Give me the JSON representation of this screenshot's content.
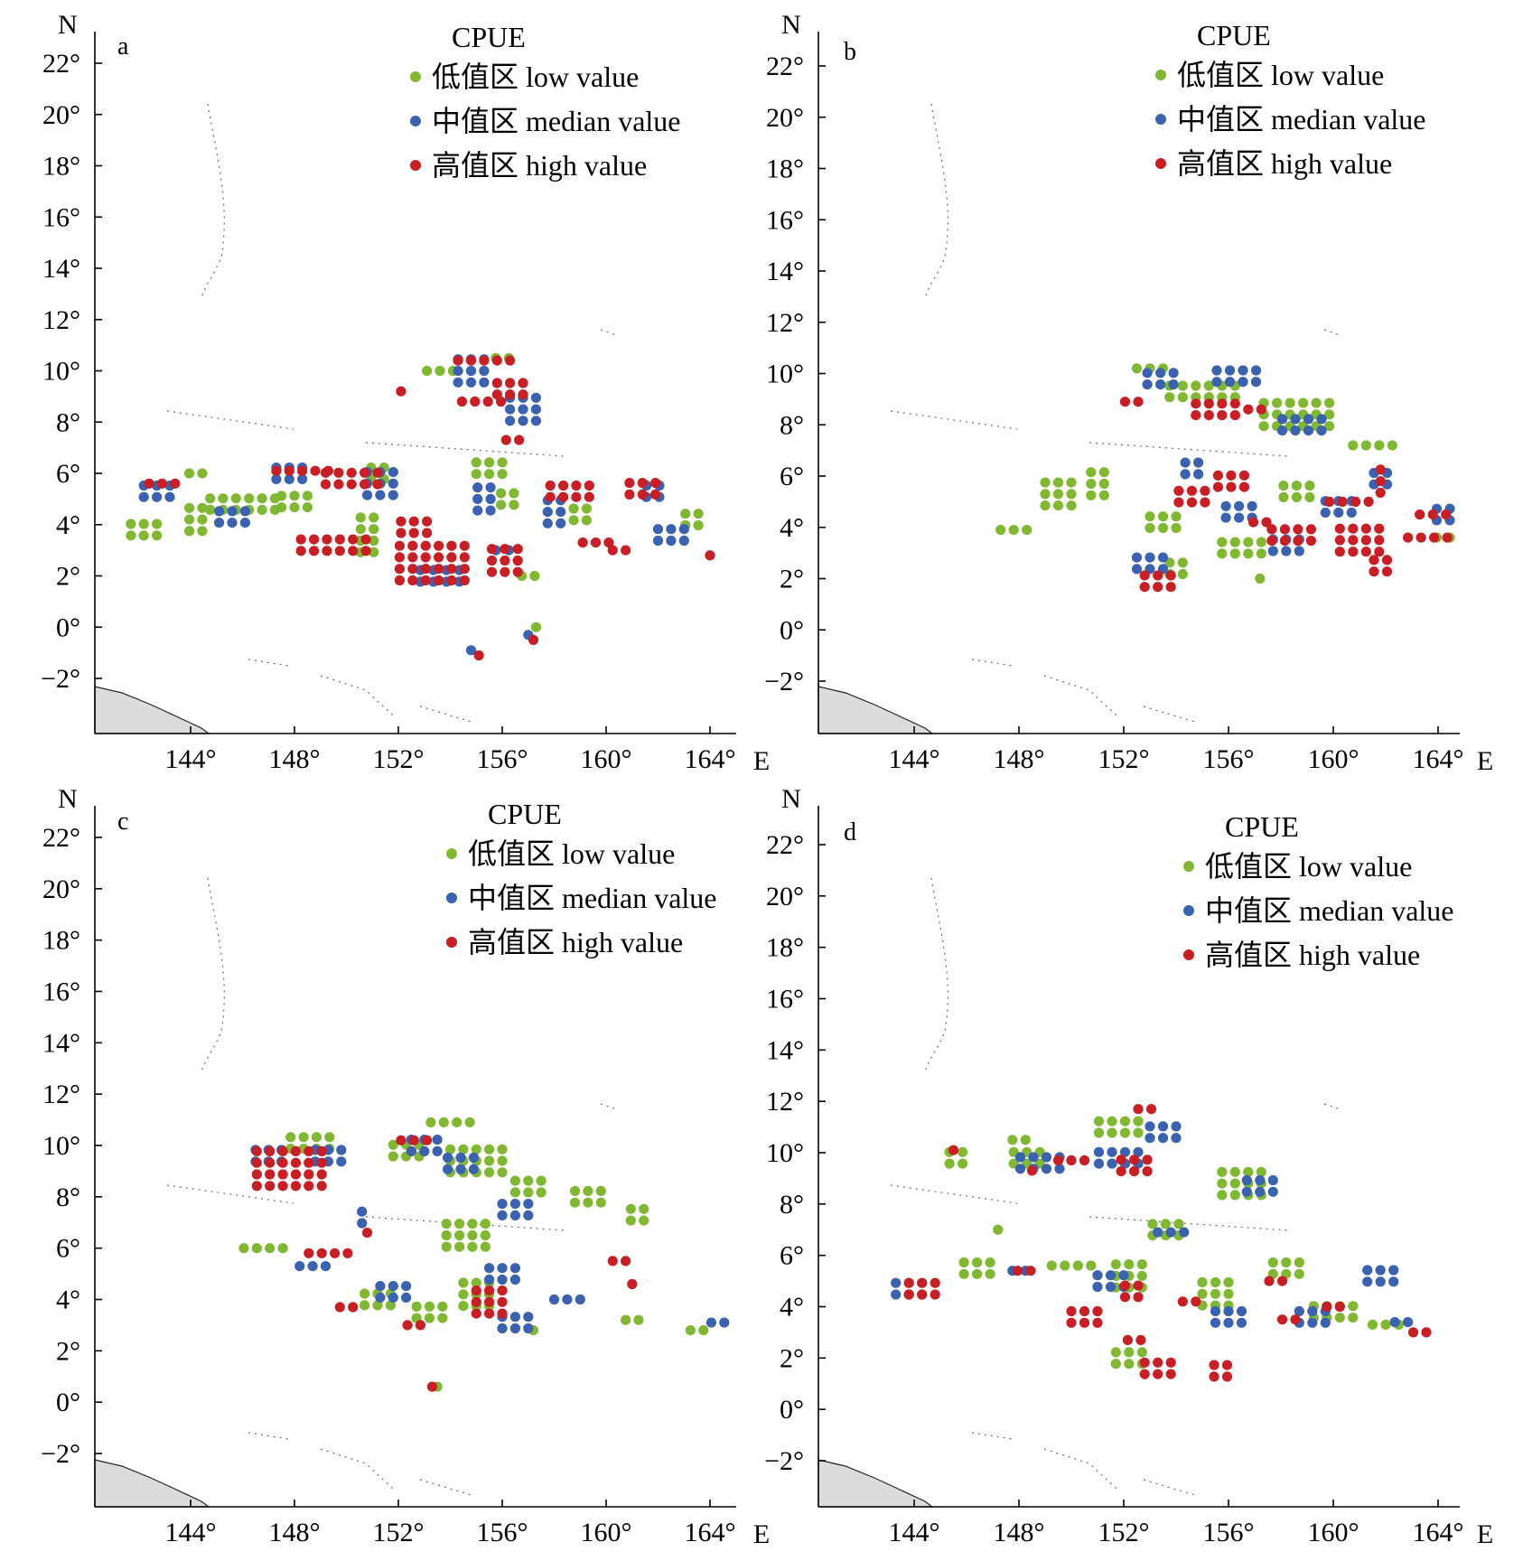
{
  "colors": {
    "low": "#80b832",
    "median": "#3a62b0",
    "high": "#c81e24"
  },
  "axes": {
    "y_ticks": [
      "22°",
      "20°",
      "18°",
      "16°",
      "14°",
      "12°",
      "10°",
      "8°",
      "6°",
      "4°",
      "2°",
      "0°",
      "−2°"
    ],
    "x_ticks": [
      "144°",
      "148°",
      "152°",
      "156°",
      "160°",
      "164°"
    ],
    "north_label": "N",
    "east_label": "E"
  },
  "legend": {
    "title": "CPUE",
    "items": [
      {
        "key": "low",
        "label": "低值区 low value"
      },
      {
        "key": "median",
        "label": "中值区 median value"
      },
      {
        "key": "high",
        "label": "高值区 high value"
      }
    ]
  },
  "chart_data": [
    {
      "type": "scatter",
      "panel": "a",
      "xlim": [
        141,
        166
      ],
      "ylim": [
        -4,
        23.5
      ],
      "series": [
        {
          "key": "low",
          "clusters": [
            [
              142.2,
              3.8,
              3,
              2
            ],
            [
              144.2,
              4.2,
              2,
              3
            ],
            [
              146,
              4.8,
              6,
              2
            ],
            [
              148,
              4.9,
              3,
              2
            ],
            [
              150.8,
              3.6,
              2,
              4
            ],
            [
              151.2,
              6,
              2,
              2
            ],
            [
              153.6,
              10,
              3,
              1
            ],
            [
              155.5,
              6.2,
              3,
              2
            ],
            [
              157,
              2,
              2,
              1
            ],
            [
              157.3,
              0,
              1,
              1
            ],
            [
              159,
              4.4,
              2,
              2
            ],
            [
              163.3,
              4.2,
              2,
              2
            ],
            [
              164,
              2.8,
              1,
              1
            ],
            [
              156,
              10.5,
              2,
              1
            ],
            [
              156.2,
              5,
              2,
              2
            ],
            [
              144.2,
              6,
              2,
              1
            ]
          ]
        },
        {
          "key": "median",
          "clusters": [
            [
              142.7,
              5.3,
              3,
              2
            ],
            [
              145.6,
              4.3,
              3,
              2
            ],
            [
              147.8,
              6,
              3,
              2
            ],
            [
              151.3,
              5.6,
              3,
              3
            ],
            [
              154.8,
              10,
              3,
              3
            ],
            [
              156.8,
              8.5,
              3,
              3
            ],
            [
              155.3,
              5,
              2,
              3
            ],
            [
              153.6,
              2,
              4,
              2
            ],
            [
              156,
              3,
              2,
              1
            ],
            [
              158,
              4.5,
              2,
              3
            ],
            [
              161.8,
              5.3,
              2,
              2
            ],
            [
              162.5,
              3.6,
              3,
              2
            ],
            [
              154.8,
              -0.9,
              1,
              1
            ],
            [
              157,
              -0.3,
              1,
              1
            ]
          ]
        },
        {
          "key": "high",
          "clusters": [
            [
              142.9,
              5.6,
              3,
              1
            ],
            [
              148.3,
              6.1,
              5,
              1
            ],
            [
              150.2,
              5.8,
              5,
              2
            ],
            [
              149.5,
              3.2,
              6,
              2
            ],
            [
              153.3,
              2.5,
              6,
              4
            ],
            [
              152.6,
              3.9,
              3,
              2
            ],
            [
              155.3,
              10.4,
              5,
              1
            ],
            [
              156.3,
              9.3,
              3,
              2
            ],
            [
              155.2,
              8.8,
              4,
              1
            ],
            [
              156.4,
              7.3,
              2,
              1
            ],
            [
              156.1,
              2.6,
              3,
              3
            ],
            [
              158.6,
              5.3,
              4,
              2
            ],
            [
              159.6,
              3.3,
              3,
              1
            ],
            [
              161.4,
              5.4,
              3,
              2
            ],
            [
              152.1,
              9.2,
              1,
              1
            ],
            [
              155.1,
              -1.1,
              1,
              1
            ],
            [
              157.2,
              -0.5,
              1,
              1
            ],
            [
              164,
              2.8,
              1,
              1
            ],
            [
              160.5,
              3,
              2,
              1
            ]
          ]
        }
      ]
    },
    {
      "type": "scatter",
      "panel": "b",
      "xlim": [
        141,
        166
      ],
      "ylim": [
        -4,
        23.5
      ],
      "series": [
        {
          "key": "low",
          "clusters": [
            [
              147.8,
              3.9,
              3,
              1
            ],
            [
              149.5,
              5.3,
              3,
              3
            ],
            [
              151,
              5.7,
              2,
              3
            ],
            [
              153,
              10.2,
              3,
              1
            ],
            [
              155,
              9.3,
              6,
              2
            ],
            [
              158.6,
              8.4,
              6,
              3
            ],
            [
              161.5,
              7.2,
              4,
              1
            ],
            [
              153.5,
              4.2,
              3,
              2
            ],
            [
              156.5,
              3.2,
              4,
              2
            ],
            [
              158.6,
              5.4,
              3,
              2
            ],
            [
              164.2,
              3.6,
              2,
              1
            ],
            [
              154,
              2.4,
              2,
              2
            ],
            [
              157.2,
              2,
              1,
              1
            ]
          ]
        },
        {
          "key": "median",
          "clusters": [
            [
              153.4,
              9.8,
              3,
              2
            ],
            [
              156.3,
              9.9,
              4,
              2
            ],
            [
              158.8,
              8,
              4,
              2
            ],
            [
              154.6,
              6.3,
              2,
              2
            ],
            [
              156.4,
              4.6,
              3,
              2
            ],
            [
              160.2,
              4.8,
              3,
              2
            ],
            [
              161.8,
              5.9,
              2,
              2
            ],
            [
              164.2,
              4.5,
              2,
              2
            ],
            [
              153,
              2.6,
              3,
              2
            ],
            [
              158.2,
              3.3,
              3,
              2
            ]
          ]
        },
        {
          "key": "high",
          "clusters": [
            [
              155.5,
              8.6,
              4,
              2
            ],
            [
              157,
              8.6,
              2,
              1
            ],
            [
              154.6,
              5.2,
              3,
              2
            ],
            [
              156.1,
              5.8,
              3,
              2
            ],
            [
              157.2,
              4.2,
              2,
              1
            ],
            [
              158.4,
              3.7,
              4,
              2
            ],
            [
              160.6,
              5,
              4,
              1
            ],
            [
              161.8,
              5.8,
              1,
              3
            ],
            [
              161,
              3.5,
              4,
              3
            ],
            [
              161.8,
              2.5,
              2,
              2
            ],
            [
              163.6,
              3.6,
              4,
              1
            ],
            [
              163.8,
              4.5,
              3,
              1
            ],
            [
              153.3,
              1.9,
              3,
              2
            ],
            [
              152.3,
              8.9,
              2,
              1
            ]
          ]
        }
      ]
    },
    {
      "type": "scatter",
      "panel": "c",
      "xlim": [
        141,
        166
      ],
      "ylim": [
        -4,
        23.5
      ],
      "series": [
        {
          "key": "low",
          "clusters": [
            [
              148.6,
              10.1,
              4,
              2
            ],
            [
              146.8,
              6,
              4,
              1
            ],
            [
              152.3,
              9.8,
              3,
              2
            ],
            [
              154,
              10.9,
              4,
              1
            ],
            [
              155,
              9.4,
              5,
              3
            ],
            [
              157,
              8.4,
              3,
              2
            ],
            [
              159.3,
              8,
              3,
              2
            ],
            [
              161.2,
              7.3,
              2,
              2
            ],
            [
              154.6,
              6.5,
              4,
              3
            ],
            [
              155,
              4.2,
              3,
              3
            ],
            [
              151.2,
              4,
              3,
              2
            ],
            [
              153.2,
              3.5,
              3,
              2
            ],
            [
              161,
              3.2,
              2,
              1
            ],
            [
              163.5,
              2.8,
              2,
              1
            ],
            [
              153.5,
              0.6,
              1,
              1
            ],
            [
              157.2,
              2.8,
              1,
              1
            ]
          ]
        },
        {
          "key": "median",
          "clusters": [
            [
              147,
              9.6,
              3,
              2
            ],
            [
              149.3,
              9.6,
              3,
              2
            ],
            [
              153,
              10,
              3,
              2
            ],
            [
              154.4,
              9.3,
              3,
              2
            ],
            [
              156.5,
              7.5,
              3,
              2
            ],
            [
              156,
              5,
              3,
              2
            ],
            [
              151.8,
              4.3,
              3,
              2
            ],
            [
              158.5,
              4,
              3,
              1
            ],
            [
              156.5,
              3.1,
              3,
              2
            ],
            [
              150.6,
              7.2,
              1,
              2
            ],
            [
              148.7,
              5.3,
              3,
              1
            ],
            [
              164.3,
              3.1,
              2,
              1
            ]
          ]
        },
        {
          "key": "high",
          "clusters": [
            [
              147.8,
              9.1,
              6,
              4
            ],
            [
              149.3,
              5.8,
              4,
              1
            ],
            [
              152.6,
              10.2,
              3,
              1
            ],
            [
              155.5,
              3.9,
              3,
              3
            ],
            [
              160.5,
              5.5,
              2,
              1
            ],
            [
              161,
              4.6,
              1,
              1
            ],
            [
              150,
              3.7,
              2,
              1
            ],
            [
              152.6,
              3,
              2,
              1
            ],
            [
              153.3,
              0.6,
              1,
              1
            ],
            [
              150.8,
              6.6,
              1,
              1
            ]
          ]
        }
      ]
    },
    {
      "type": "scatter",
      "panel": "d",
      "xlim": [
        141,
        166
      ],
      "ylim": [
        -4,
        23.5
      ],
      "series": [
        {
          "key": "low",
          "clusters": [
            [
              145.6,
              9.8,
              2,
              2
            ],
            [
              148.3,
              9.8,
              3,
              2
            ],
            [
              151.8,
              11,
              4,
              2
            ],
            [
              156.5,
              8.8,
              4,
              3
            ],
            [
              146.4,
              5.5,
              3,
              2
            ],
            [
              150,
              5.6,
              4,
              1
            ],
            [
              152.2,
              5.2,
              3,
              3
            ],
            [
              153.6,
              7,
              3,
              2
            ],
            [
              155.5,
              4.5,
              3,
              3
            ],
            [
              158.2,
              5.5,
              3,
              2
            ],
            [
              160,
              3.8,
              4,
              2
            ],
            [
              162,
              3.3,
              3,
              1
            ],
            [
              147.2,
              7,
              1,
              1
            ],
            [
              152.2,
              2,
              3,
              2
            ],
            [
              148,
              10.5,
              2,
              1
            ]
          ]
        },
        {
          "key": "median",
          "clusters": [
            [
              143.8,
              4.7,
              3,
              2
            ],
            [
              148.8,
              9.6,
              4,
              2
            ],
            [
              151.8,
              9.8,
              4,
              2
            ],
            [
              153.5,
              10.8,
              3,
              2
            ],
            [
              157.2,
              8.7,
              3,
              2
            ],
            [
              148,
              5.4,
              2,
              1
            ],
            [
              151.5,
              5,
              3,
              2
            ],
            [
              153.8,
              6.9,
              3,
              1
            ],
            [
              156,
              3.6,
              3,
              2
            ],
            [
              159.2,
              3.6,
              3,
              2
            ],
            [
              161.8,
              5.2,
              3,
              2
            ],
            [
              162.6,
              3.4,
              2,
              1
            ]
          ]
        },
        {
          "key": "high",
          "clusters": [
            [
              144.3,
              4.7,
              3,
              2
            ],
            [
              145.5,
              10.1,
              1,
              1
            ],
            [
              150,
              9.7,
              3,
              1
            ],
            [
              152.4,
              9.5,
              3,
              2
            ],
            [
              152.8,
              11.7,
              2,
              1
            ],
            [
              148.2,
              5.4,
              2,
              1
            ],
            [
              150.5,
              3.6,
              3,
              2
            ],
            [
              152.3,
              4.6,
              2,
              2
            ],
            [
              152.4,
              2.7,
              2,
              1
            ],
            [
              153.3,
              1.6,
              3,
              2
            ],
            [
              155.7,
              1.5,
              2,
              2
            ],
            [
              157.8,
              5,
              2,
              1
            ],
            [
              154.5,
              4.2,
              2,
              1
            ],
            [
              158.3,
              3.5,
              2,
              1
            ],
            [
              160,
              4,
              2,
              1
            ],
            [
              163.3,
              3,
              2,
              1
            ],
            [
              148.5,
              9.3,
              1,
              1
            ]
          ]
        }
      ]
    }
  ]
}
